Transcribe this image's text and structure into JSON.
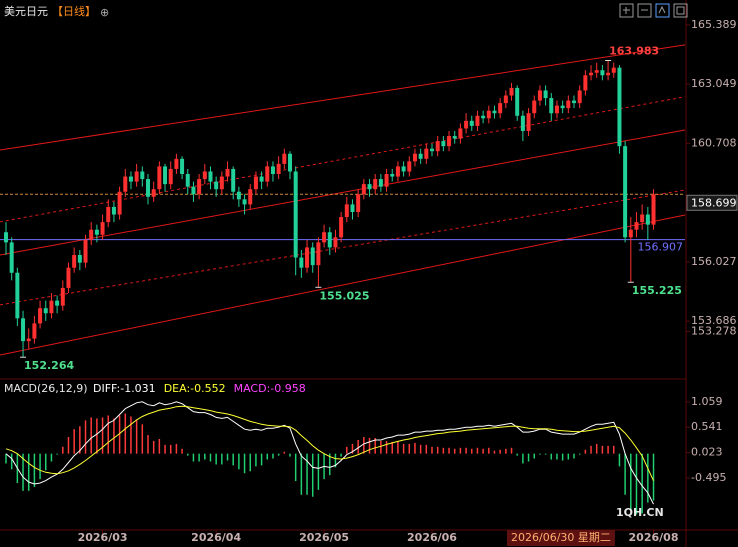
{
  "header": {
    "symbol": "美元日元",
    "period": "【日线】",
    "icon": "⊕"
  },
  "watermark": "1QH.CN",
  "chart_data": [
    {
      "type": "candlestick",
      "up_color": "#ff3030",
      "down_color": "#22d09a",
      "open": [
        157.2,
        156.8,
        155.6,
        153.8,
        152.9,
        153.0,
        153.6,
        154.2,
        154.0,
        154.5,
        154.3,
        155.0,
        155.8,
        156.3,
        156.0,
        156.9,
        157.3,
        157.1,
        157.6,
        158.2,
        157.9,
        158.8,
        159.4,
        159.2,
        159.6,
        159.3,
        158.6,
        158.9,
        159.8,
        159.1,
        159.7,
        160.1,
        159.5,
        159.0,
        158.7,
        159.3,
        159.6,
        159.2,
        158.9,
        159.4,
        159.7,
        158.8,
        158.5,
        158.3,
        158.9,
        159.4,
        159.2,
        159.8,
        159.5,
        159.9,
        160.3,
        159.6,
        156.2,
        155.8,
        156.6,
        155.9,
        156.8,
        157.2,
        156.6,
        157.0,
        157.8,
        158.3,
        158.0,
        158.7,
        159.1,
        158.9,
        159.3,
        159.0,
        159.5,
        159.4,
        159.8,
        159.6,
        160.0,
        160.3,
        160.1,
        160.5,
        160.4,
        160.8,
        160.6,
        161.0,
        160.9,
        161.3,
        161.6,
        161.4,
        161.8,
        161.7,
        162.0,
        161.9,
        162.3,
        162.6,
        162.9,
        161.8,
        161.2,
        161.9,
        162.4,
        162.8,
        162.5,
        161.9,
        162.2,
        162.1,
        162.4,
        162.3,
        162.8,
        163.4,
        163.5,
        163.6,
        163.4,
        163.5,
        163.7,
        160.6,
        157.0,
        157.3,
        157.6,
        157.9,
        157.5
      ],
      "high": [
        157.6,
        157.0,
        155.8,
        154.1,
        153.4,
        153.9,
        154.5,
        154.5,
        154.8,
        154.7,
        155.3,
        156.0,
        156.6,
        156.5,
        157.1,
        157.6,
        157.5,
        157.9,
        158.5,
        158.4,
        159.0,
        159.7,
        159.6,
        159.9,
        159.8,
        159.5,
        159.2,
        160.0,
        159.9,
        160.0,
        160.3,
        160.2,
        159.7,
        159.2,
        159.5,
        159.9,
        159.8,
        159.4,
        159.6,
        160.0,
        159.8,
        159.0,
        158.7,
        159.1,
        159.6,
        159.6,
        160.0,
        160.0,
        160.2,
        160.5,
        160.4,
        159.8,
        156.5,
        156.9,
        156.8,
        157.0,
        157.5,
        157.4,
        157.3,
        158.0,
        158.6,
        158.5,
        158.9,
        159.3,
        159.3,
        159.5,
        159.5,
        159.7,
        159.7,
        160.0,
        160.0,
        160.2,
        160.5,
        160.5,
        160.7,
        160.7,
        161.0,
        161.0,
        161.2,
        161.2,
        161.5,
        161.9,
        161.8,
        162.0,
        162.0,
        162.2,
        162.2,
        162.5,
        162.8,
        163.1,
        163.0,
        162.0,
        162.1,
        162.6,
        163.0,
        163.0,
        162.7,
        162.4,
        162.4,
        162.6,
        162.6,
        163.0,
        163.6,
        163.8,
        163.9,
        163.8,
        163.983,
        163.9,
        163.8,
        160.8,
        157.8,
        158.0,
        158.3,
        158.2,
        158.9
      ],
      "low": [
        156.3,
        155.3,
        153.5,
        152.264,
        152.6,
        152.8,
        153.4,
        153.7,
        153.8,
        154.0,
        154.1,
        154.8,
        155.6,
        155.7,
        155.8,
        156.7,
        156.8,
        156.9,
        157.4,
        157.6,
        157.7,
        158.6,
        158.9,
        159.0,
        159.0,
        158.3,
        158.4,
        158.7,
        158.8,
        158.9,
        159.5,
        159.3,
        158.7,
        158.4,
        158.5,
        159.1,
        158.9,
        158.6,
        158.7,
        159.2,
        158.5,
        158.2,
        157.9,
        158.1,
        158.7,
        158.9,
        159.0,
        159.2,
        159.3,
        159.7,
        159.3,
        155.5,
        155.4,
        155.6,
        155.6,
        155.025,
        156.6,
        156.3,
        156.4,
        156.8,
        157.6,
        157.7,
        157.8,
        158.5,
        158.6,
        158.7,
        158.8,
        158.8,
        159.2,
        159.2,
        159.4,
        159.4,
        159.8,
        159.9,
        159.9,
        160.2,
        160.2,
        160.4,
        160.4,
        160.7,
        160.7,
        161.1,
        161.2,
        161.2,
        161.5,
        161.5,
        161.7,
        161.7,
        162.1,
        162.4,
        161.6,
        160.8,
        161.0,
        161.7,
        162.2,
        162.2,
        161.6,
        161.7,
        161.9,
        161.9,
        162.1,
        162.1,
        162.6,
        163.2,
        163.3,
        163.2,
        163.2,
        163.3,
        160.3,
        156.8,
        155.225,
        157.0,
        157.3,
        156.9,
        157.3
      ],
      "close": [
        156.8,
        155.6,
        153.8,
        152.9,
        153.0,
        153.6,
        154.2,
        154.0,
        154.5,
        154.3,
        155.0,
        155.8,
        156.3,
        156.0,
        156.9,
        157.3,
        157.1,
        157.6,
        158.2,
        157.9,
        158.8,
        159.4,
        159.2,
        159.6,
        159.3,
        158.6,
        158.9,
        159.8,
        159.1,
        159.7,
        160.1,
        159.5,
        159.0,
        158.7,
        159.3,
        159.6,
        159.2,
        158.9,
        159.4,
        159.7,
        158.8,
        158.5,
        158.3,
        158.9,
        159.4,
        159.2,
        159.8,
        159.5,
        159.9,
        160.3,
        159.6,
        156.2,
        155.8,
        156.6,
        155.9,
        156.8,
        157.2,
        156.6,
        157.0,
        157.8,
        158.3,
        158.0,
        158.7,
        159.1,
        158.9,
        159.3,
        159.0,
        159.5,
        159.4,
        159.8,
        159.6,
        160.0,
        160.3,
        160.1,
        160.5,
        160.4,
        160.8,
        160.6,
        161.0,
        160.9,
        161.3,
        161.6,
        161.4,
        161.8,
        161.7,
        162.0,
        161.9,
        162.3,
        162.6,
        162.9,
        161.8,
        161.2,
        161.9,
        162.4,
        162.8,
        162.5,
        161.9,
        162.2,
        162.1,
        162.4,
        162.3,
        162.8,
        163.4,
        163.5,
        163.6,
        163.4,
        163.5,
        163.7,
        160.6,
        157.0,
        157.3,
        157.6,
        157.9,
        157.5,
        158.699
      ],
      "ylim": [
        151.68,
        165.78
      ],
      "yticks": [
        165.389,
        163.049,
        160.708,
        156.027,
        153.686,
        153.278
      ],
      "last_price": 158.699,
      "last_price_color": "#d08a3a",
      "ref_line": {
        "value": 156.907,
        "color": "#7070ff"
      },
      "channel_color": "#e01818",
      "channel": [
        {
          "start": 160.45,
          "end": 164.6,
          "style": "solid"
        },
        {
          "start": 157.61,
          "end": 162.55,
          "style": "dashed"
        },
        {
          "start": 156.3,
          "end": 161.24,
          "style": "solid"
        },
        {
          "start": 154.33,
          "end": 158.87,
          "style": "dashed"
        },
        {
          "start": 152.35,
          "end": 157.88,
          "style": "solid"
        }
      ],
      "annotations": [
        {
          "index": 106,
          "value": 163.983,
          "color": "#ff4040"
        },
        {
          "index": 55,
          "value": 155.025,
          "color": "#4fe08e"
        },
        {
          "index": 110,
          "value": 155.225,
          "color": "#4fe08e"
        },
        {
          "index": 3,
          "value": 152.264,
          "color": "#4fe08e"
        }
      ],
      "xticks": [
        {
          "value": 17,
          "label": "2026/03"
        },
        {
          "value": 37,
          "label": "2026/04"
        },
        {
          "value": 56,
          "label": "2026/05"
        },
        {
          "value": 75,
          "label": "2026/06"
        },
        {
          "value": 114,
          "label": "2026/08"
        }
      ],
      "cursor": {
        "value": 97,
        "label": "2026/06/30 星期二"
      }
    },
    {
      "type": "macd",
      "title": "MACD(26,12,9)",
      "ylim": [
        -1.56,
        1.26
      ],
      "yticks": [
        1.059,
        0.541,
        0.023,
        -0.495
      ],
      "up_color": "#ff3a3a",
      "down_color": "#1fcf70",
      "series": [
        {
          "name": "DIFF:-1.031",
          "color": "#ffffff",
          "kind": "line",
          "values": [
            0.0,
            -0.1,
            -0.3,
            -0.48,
            -0.58,
            -0.62,
            -0.6,
            -0.55,
            -0.48,
            -0.42,
            -0.32,
            -0.18,
            -0.04,
            0.06,
            0.2,
            0.32,
            0.4,
            0.5,
            0.62,
            0.68,
            0.8,
            0.92,
            0.98,
            1.04,
            1.06,
            1.0,
            0.98,
            1.04,
            1.0,
            1.02,
            1.06,
            1.02,
            0.94,
            0.86,
            0.84,
            0.84,
            0.8,
            0.74,
            0.72,
            0.74,
            0.66,
            0.58,
            0.5,
            0.48,
            0.5,
            0.48,
            0.52,
            0.52,
            0.54,
            0.58,
            0.52,
            0.2,
            -0.05,
            -0.15,
            -0.28,
            -0.3,
            -0.26,
            -0.28,
            -0.24,
            -0.14,
            -0.02,
            0.04,
            0.12,
            0.2,
            0.24,
            0.28,
            0.28,
            0.32,
            0.34,
            0.38,
            0.38,
            0.4,
            0.44,
            0.44,
            0.46,
            0.46,
            0.48,
            0.48,
            0.5,
            0.5,
            0.52,
            0.54,
            0.54,
            0.56,
            0.56,
            0.58,
            0.56,
            0.58,
            0.6,
            0.62,
            0.54,
            0.44,
            0.44,
            0.46,
            0.5,
            0.5,
            0.44,
            0.42,
            0.4,
            0.4,
            0.4,
            0.44,
            0.5,
            0.56,
            0.6,
            0.6,
            0.62,
            0.64,
            0.4,
            0.0,
            -0.3,
            -0.5,
            -0.66,
            -0.8,
            -1.031
          ]
        },
        {
          "name": "DEA:-0.552",
          "color": "#ffff33",
          "kind": "line",
          "values": [
            0.1,
            0.06,
            0.0,
            -0.1,
            -0.2,
            -0.28,
            -0.34,
            -0.38,
            -0.4,
            -0.41,
            -0.39,
            -0.35,
            -0.29,
            -0.22,
            -0.14,
            -0.05,
            0.04,
            0.13,
            0.23,
            0.32,
            0.41,
            0.51,
            0.6,
            0.69,
            0.76,
            0.81,
            0.85,
            0.89,
            0.91,
            0.93,
            0.96,
            0.97,
            0.96,
            0.94,
            0.92,
            0.9,
            0.88,
            0.85,
            0.83,
            0.81,
            0.78,
            0.74,
            0.7,
            0.66,
            0.63,
            0.6,
            0.58,
            0.57,
            0.56,
            0.56,
            0.55,
            0.48,
            0.37,
            0.27,
            0.16,
            0.07,
            0.0,
            -0.06,
            -0.1,
            -0.11,
            -0.09,
            -0.06,
            -0.02,
            0.03,
            0.08,
            0.12,
            0.15,
            0.19,
            0.22,
            0.25,
            0.28,
            0.3,
            0.33,
            0.35,
            0.37,
            0.39,
            0.41,
            0.42,
            0.44,
            0.45,
            0.46,
            0.48,
            0.49,
            0.5,
            0.51,
            0.52,
            0.53,
            0.54,
            0.55,
            0.56,
            0.56,
            0.54,
            0.52,
            0.51,
            0.51,
            0.51,
            0.5,
            0.48,
            0.47,
            0.46,
            0.45,
            0.45,
            0.46,
            0.48,
            0.5,
            0.52,
            0.54,
            0.56,
            0.53,
            0.42,
            0.28,
            0.12,
            -0.05,
            -0.3,
            -0.552
          ]
        },
        {
          "name": "MACD:-0.958",
          "color": "#ff44ff",
          "kind": "bar",
          "values": [
            -0.2,
            -0.32,
            -0.6,
            -0.76,
            -0.76,
            -0.68,
            -0.52,
            -0.34,
            -0.16,
            -0.02,
            0.14,
            0.34,
            0.5,
            0.56,
            0.68,
            0.74,
            0.72,
            0.74,
            0.78,
            0.72,
            0.78,
            0.82,
            0.76,
            0.7,
            0.6,
            0.38,
            0.26,
            0.3,
            0.18,
            0.18,
            0.2,
            0.1,
            -0.04,
            -0.16,
            -0.16,
            -0.12,
            -0.16,
            -0.22,
            -0.22,
            -0.14,
            -0.24,
            -0.32,
            -0.4,
            -0.36,
            -0.26,
            -0.24,
            -0.12,
            -0.1,
            -0.04,
            0.04,
            -0.06,
            -0.56,
            -0.84,
            -0.84,
            -0.88,
            -0.74,
            -0.52,
            -0.44,
            -0.28,
            -0.06,
            0.14,
            0.2,
            0.28,
            0.34,
            0.32,
            0.32,
            0.26,
            0.26,
            0.24,
            0.26,
            0.2,
            0.2,
            0.22,
            0.18,
            0.18,
            0.14,
            0.14,
            0.12,
            0.12,
            0.1,
            0.12,
            0.12,
            0.1,
            0.12,
            0.1,
            0.12,
            0.06,
            0.08,
            0.1,
            0.12,
            -0.04,
            -0.2,
            -0.16,
            -0.1,
            -0.02,
            -0.02,
            -0.12,
            -0.12,
            -0.14,
            -0.12,
            -0.1,
            -0.02,
            0.08,
            0.16,
            0.2,
            0.16,
            0.16,
            0.16,
            -0.26,
            -0.84,
            -1.16,
            -1.24,
            -1.22,
            -1.0,
            -0.958
          ]
        }
      ]
    }
  ]
}
